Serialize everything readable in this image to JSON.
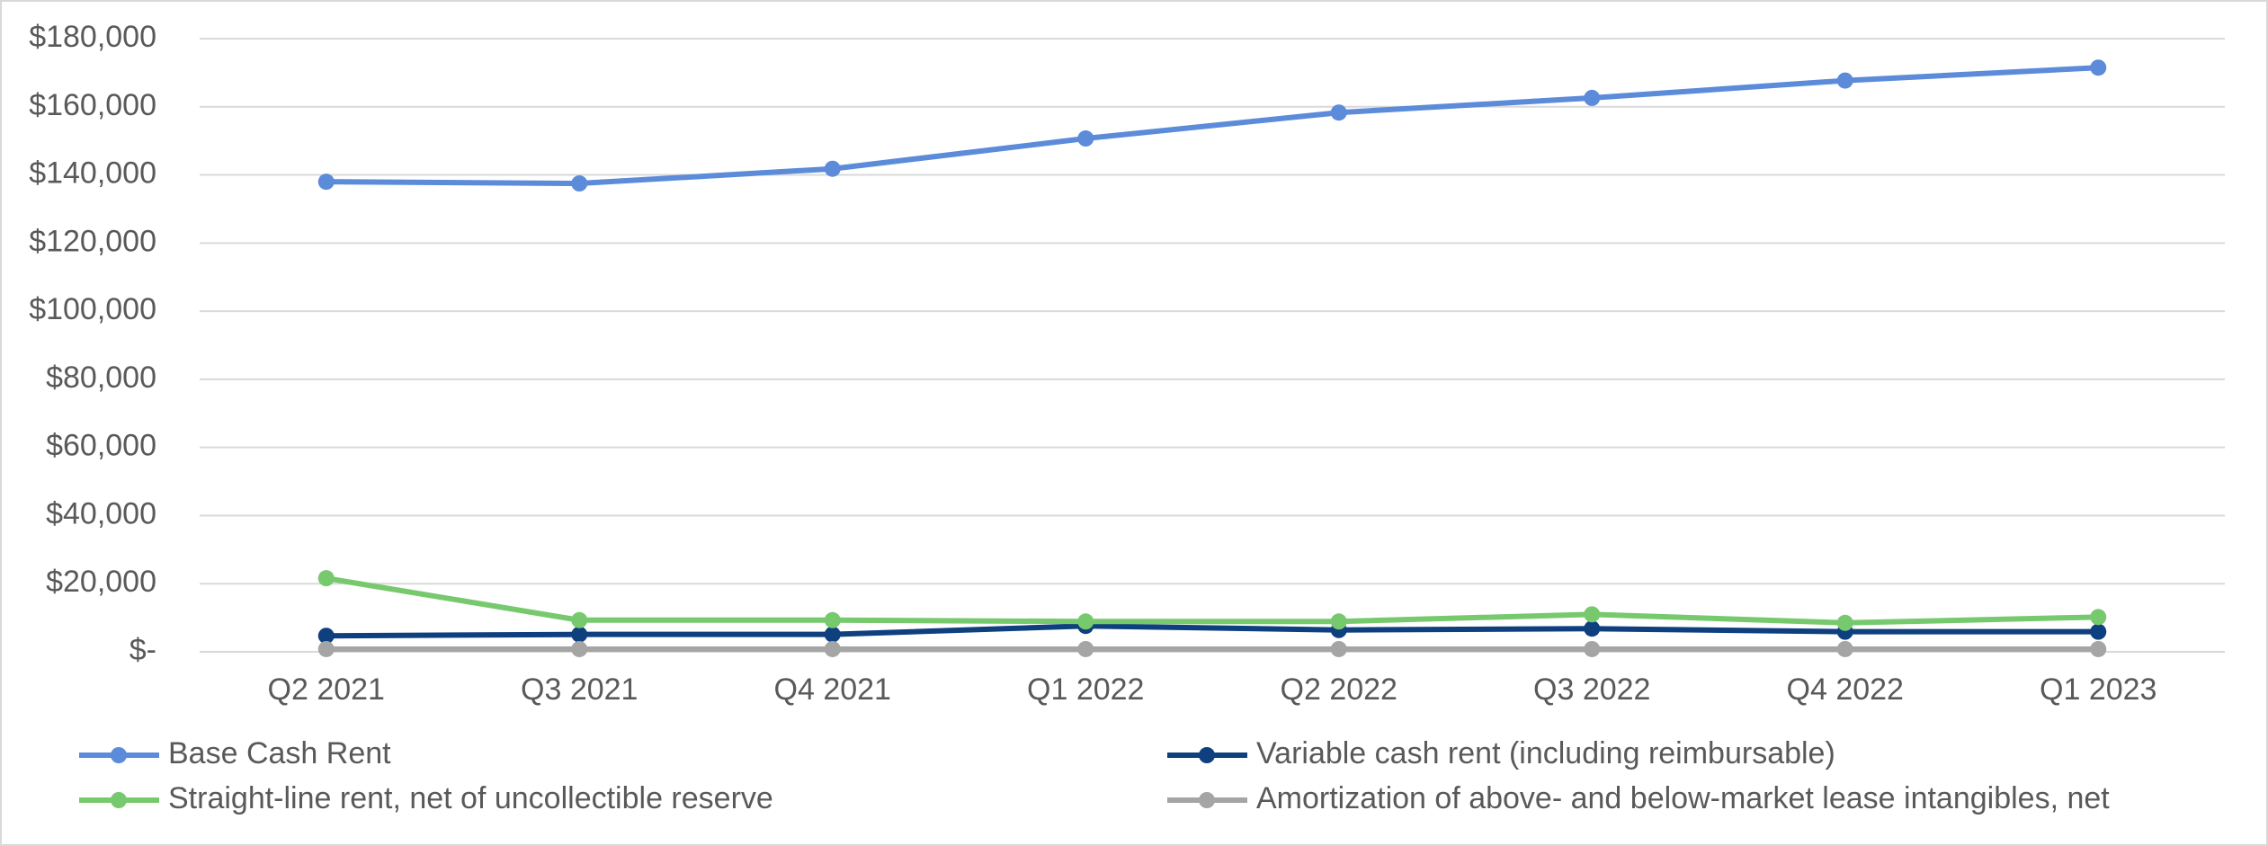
{
  "chart_data": {
    "type": "line",
    "categories": [
      "Q2 2021",
      "Q3 2021",
      "Q4 2021",
      "Q1 2022",
      "Q2 2022",
      "Q3 2022",
      "Q4 2022",
      "Q1 2023"
    ],
    "series": [
      {
        "name": "Base Cash Rent",
        "color": "#5b8bd9",
        "values": [
          138000,
          137500,
          141800,
          150700,
          158300,
          162600,
          167700,
          171500
        ]
      },
      {
        "name": "Variable cash rent (including reimbursable)",
        "color": "#0e3f7e",
        "values": [
          4700,
          5100,
          5100,
          7600,
          6400,
          6800,
          5900,
          5900
        ]
      },
      {
        "name": "Straight-line rent, net of uncollectible reserve",
        "color": "#77c96e",
        "values": [
          21600,
          9300,
          9300,
          8900,
          8900,
          11000,
          8500,
          10200
        ]
      },
      {
        "name": "Amortization of above- and below-market lease intangibles, net",
        "color": "#a5a5a5",
        "values": [
          800,
          800,
          800,
          800,
          800,
          800,
          800,
          800
        ]
      }
    ],
    "ylim": [
      0,
      180000
    ],
    "yticks": [
      {
        "value": 0,
        "label": "$-"
      },
      {
        "value": 20000,
        "label": "$20,000"
      },
      {
        "value": 40000,
        "label": "$40,000"
      },
      {
        "value": 60000,
        "label": "$60,000"
      },
      {
        "value": 80000,
        "label": "$80,000"
      },
      {
        "value": 100000,
        "label": "$100,000"
      },
      {
        "value": 120000,
        "label": "$120,000"
      },
      {
        "value": 140000,
        "label": "$140,000"
      },
      {
        "value": 160000,
        "label": "$160,000"
      },
      {
        "value": 180000,
        "label": "$180,000"
      }
    ],
    "grid": true,
    "legend": "bottom"
  }
}
